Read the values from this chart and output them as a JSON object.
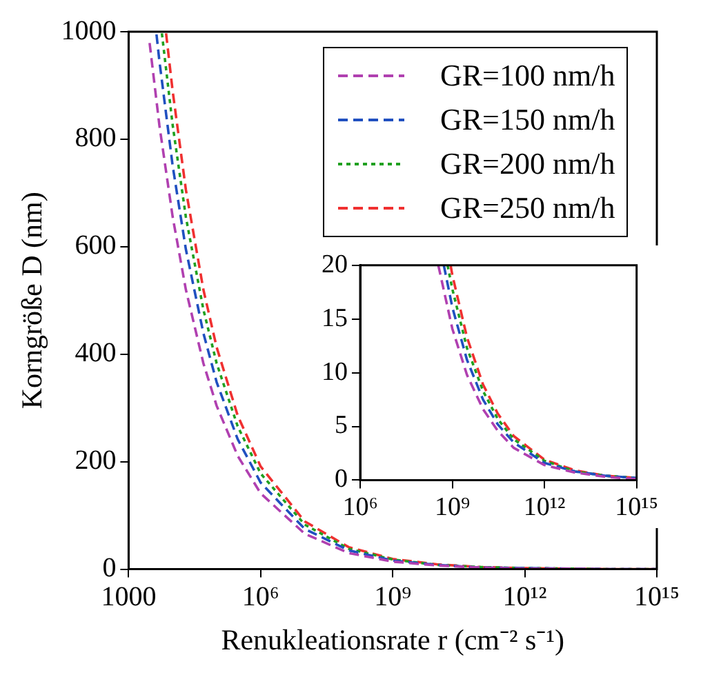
{
  "chart_data": [
    {
      "type": "line",
      "xlabel": "Renukleationsrate r (cm⁻² s⁻¹)",
      "ylabel": "Korngröße D (nm)",
      "log": "x",
      "grid": false,
      "legend": "top right",
      "xlim": [
        1000,
        1000000000000000.0
      ],
      "ylim": [
        0,
        1000
      ],
      "xticks": [
        1000,
        {
          "value": 1000000.0,
          "label": "10⁶"
        },
        {
          "value": 1000000000.0,
          "label": "10⁹"
        },
        {
          "value": 1000000000000.0,
          "label": "10¹²"
        },
        {
          "value": 1000000000000000.0,
          "label": "10¹⁵"
        }
      ],
      "yticks": [
        0,
        200,
        400,
        600,
        800,
        1000
      ],
      "series": [
        {
          "name": "GR=100 nm/h",
          "color": "#b040b0",
          "line_style": "dashed",
          "x": [
            3000,
            5000,
            10000.0,
            20000.0,
            50000.0,
            100000.0,
            300000.0,
            1000000.0,
            10000000.0,
            100000000.0,
            1000000000.0,
            10000000000.0,
            100000000000.0,
            1000000000000.0,
            10000000000000.0,
            100000000000000.0,
            1000000000000000.0
          ],
          "values": [
            979,
            826,
            656,
            520,
            383,
            304,
            211,
            141,
            66,
            30,
            14,
            7,
            3,
            1,
            1,
            0,
            0
          ]
        },
        {
          "name": "GR=150 nm/h",
          "color": "#2050c0",
          "line_style": "dashed",
          "x": [
            4300,
            5000,
            10000.0,
            20000.0,
            50000.0,
            100000.0,
            300000.0,
            1000000.0,
            10000000.0,
            100000000.0,
            1000000000.0,
            10000000000.0,
            100000000000.0,
            1000000000000.0,
            10000000000000.0,
            100000000000000.0,
            1000000000000000.0
          ],
          "values": [
            995,
            946,
            751,
            595,
            439,
            348,
            242,
            161,
            75,
            35,
            16,
            8,
            3,
            2,
            1,
            0,
            0
          ]
        },
        {
          "name": "GR=200 nm/h",
          "color": "#20a020",
          "line_style": "dotted",
          "x": [
            5700,
            10000.0,
            20000.0,
            50000.0,
            100000.0,
            300000.0,
            1000000.0,
            10000000.0,
            100000000.0,
            1000000000.0,
            10000000000.0,
            100000000000.0,
            1000000000000.0,
            10000000000000.0,
            100000000000000.0,
            1000000000000000.0
          ],
          "values": [
            997,
            827,
            655,
            483,
            383,
            266,
            178,
            83,
            38,
            18,
            8,
            4,
            2,
            1,
            0,
            0
          ]
        },
        {
          "name": "GR=250 nm/h",
          "color": "#f03030",
          "line_style": "dashed",
          "x": [
            7100,
            10000.0,
            20000.0,
            50000.0,
            100000.0,
            300000.0,
            1000000.0,
            10000000.0,
            100000000.0,
            1000000000.0,
            10000000000.0,
            100000000000.0,
            1000000000000.0,
            10000000000000.0,
            100000000000000.0,
            1000000000000000.0
          ],
          "values": [
            997,
            890,
            706,
            520,
            413,
            286,
            191,
            89,
            41,
            19,
            9,
            4,
            2,
            1,
            0,
            0
          ]
        }
      ]
    },
    {
      "type": "line",
      "log": "x",
      "grid": false,
      "xlim": [
        1000000.0,
        1000000000000000.0
      ],
      "ylim": [
        0,
        20
      ],
      "xticks": [
        {
          "value": 1000000.0,
          "label": "10⁶"
        },
        {
          "value": 1000000000.0,
          "label": "10⁹"
        },
        {
          "value": 1000000000000.0,
          "label": "10¹²"
        },
        {
          "value": 1000000000000000.0,
          "label": "10¹⁵"
        }
      ],
      "yticks": [
        0,
        5,
        10,
        15,
        20
      ],
      "series": [
        {
          "color": "#b040b0",
          "line_style": "dashed",
          "x": [
            350000000.0,
            1000000000.0,
            3000000000.0,
            10000000000.0,
            30000000000.0,
            100000000000.0,
            1000000000000.0,
            10000000000000.0,
            100000000000000.0,
            1000000000000000.0
          ],
          "values": [
            20,
            14.1,
            9.8,
            6.6,
            4.6,
            3,
            1.4,
            0.7,
            0.3,
            0.1
          ]
        },
        {
          "color": "#2050c0",
          "line_style": "dashed",
          "x": [
            530000000.0,
            1000000000.0,
            3000000000.0,
            10000000000.0,
            30000000000.0,
            100000000000.0,
            1000000000000.0,
            10000000000000.0,
            100000000000000.0,
            1000000000000000.0
          ],
          "values": [
            20,
            16.1,
            11.2,
            7.5,
            5.2,
            3.5,
            1.6,
            0.8,
            0.4,
            0.2
          ]
        },
        {
          "color": "#20a020",
          "line_style": "dotted",
          "x": [
            700000000.0,
            1000000000.0,
            3000000000.0,
            10000000000.0,
            30000000000.0,
            100000000000.0,
            1000000000000.0,
            10000000000000.0,
            100000000000000.0,
            1000000000000000.0
          ],
          "values": [
            20,
            17.8,
            12.3,
            8.3,
            5.7,
            3.8,
            1.8,
            0.8,
            0.4,
            0.2
          ]
        },
        {
          "color": "#f03030",
          "line_style": "dashed",
          "x": [
            880000000.0,
            1000000000.0,
            3000000000.0,
            10000000000.0,
            30000000000.0,
            100000000000.0,
            1000000000000.0,
            10000000000000.0,
            100000000000000.0,
            1000000000000000.0
          ],
          "values": [
            20,
            19.1,
            13.3,
            8.9,
            6.2,
            4.1,
            1.9,
            0.9,
            0.4,
            0.2
          ]
        }
      ]
    }
  ]
}
